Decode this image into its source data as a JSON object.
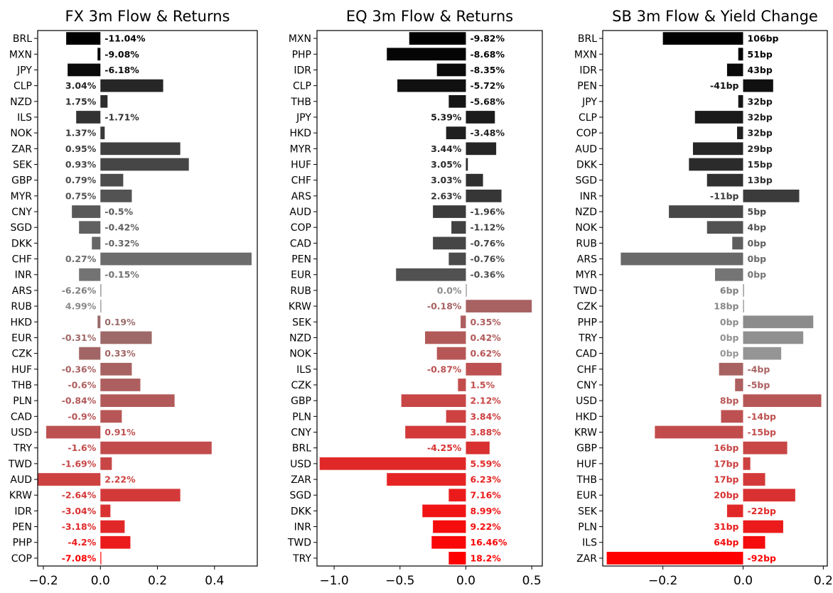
{
  "chart_data": [
    {
      "type": "bar",
      "orientation": "horizontal",
      "title": "FX 3m Flow & Returns",
      "xlim": [
        -0.22,
        0.55
      ],
      "xticks": [
        -0.2,
        0.0,
        0.2,
        0.4
      ],
      "xtick_labels": [
        "−0.2",
        "0.0",
        "0.2",
        "0.4"
      ],
      "grid": false,
      "categories": [
        "BRL",
        "MXN",
        "JPY",
        "CLP",
        "NZD",
        "ILS",
        "NOK",
        "ZAR",
        "SEK",
        "GBP",
        "MYR",
        "CNY",
        "SGD",
        "DKK",
        "CHF",
        "INR",
        "ARS",
        "RUB",
        "HKD",
        "EUR",
        "CZK",
        "HUF",
        "THB",
        "PLN",
        "CAD",
        "USD",
        "TRY",
        "TWD",
        "AUD",
        "KRW",
        "IDR",
        "PEN",
        "PHP",
        "COP"
      ],
      "values": [
        -0.12,
        -0.01,
        -0.115,
        0.22,
        0.025,
        -0.085,
        0.015,
        0.28,
        0.31,
        0.08,
        0.11,
        -0.1,
        -0.075,
        -0.03,
        0.53,
        -0.075,
        0.002,
        0.002,
        -0.01,
        0.18,
        -0.075,
        0.11,
        0.14,
        0.26,
        0.075,
        -0.19,
        0.39,
        0.04,
        -0.22,
        0.28,
        0.035,
        0.085,
        0.105,
        0.003
      ],
      "labels": [
        "-11.04%",
        "-9.08%",
        "-6.18%",
        "3.04%",
        "1.75%",
        "-1.71%",
        "1.37%",
        "0.95%",
        "0.93%",
        "0.79%",
        "0.75%",
        "-0.5%",
        "-0.42%",
        "-0.32%",
        "0.27%",
        "-0.15%",
        "-6.26%",
        "4.99%",
        "0.19%",
        "-0.31%",
        "0.33%",
        "-0.36%",
        "-0.6%",
        "-0.84%",
        "-0.9%",
        "0.91%",
        "-1.6%",
        "-1.69%",
        "2.22%",
        "-2.64%",
        "-3.04%",
        "-3.18%",
        "-4.2%",
        "-7.08%"
      ],
      "colors": [
        "#000000",
        "#050505",
        "#0a0a0a",
        "#262626",
        "#2d2d2d",
        "#333333",
        "#393939",
        "#404040",
        "#464646",
        "#4c4c4c",
        "#535353",
        "#595959",
        "#606060",
        "#666666",
        "#6c6c6c",
        "#737373",
        "#808080",
        "#8a8a8a",
        "#9a6b6b",
        "#9e6969",
        "#a26565",
        "#a86262",
        "#ad5e5e",
        "#b25a5a",
        "#b75656",
        "#bd5151",
        "#c24c4c",
        "#c84646",
        "#cd4141",
        "#d33939",
        "#d93131",
        "#e12828",
        "#eb1b1b",
        "#ff0000"
      ]
    },
    {
      "type": "bar",
      "orientation": "horizontal",
      "title": "EQ 3m Flow & Returns",
      "xlim": [
        -1.13,
        0.58
      ],
      "xticks": [
        -1.0,
        -0.5,
        0.0,
        0.5
      ],
      "xtick_labels": [
        "−1.0",
        "−0.5",
        "0.0",
        "0.5"
      ],
      "grid": false,
      "categories": [
        "MXN",
        "PHP",
        "IDR",
        "CLP",
        "THB",
        "JPY",
        "HKD",
        "MYR",
        "HUF",
        "CHF",
        "ARS",
        "AUD",
        "COP",
        "CAD",
        "PEN",
        "EUR",
        "RUB",
        "KRW",
        "SEK",
        "NZD",
        "NOK",
        "ILS",
        "CZK",
        "GBP",
        "PLN",
        "CNY",
        "BRL",
        "USD",
        "ZAR",
        "SGD",
        "DKK",
        "INR",
        "TWD",
        "TRY"
      ],
      "values": [
        -0.43,
        -0.6,
        -0.22,
        -0.52,
        -0.13,
        0.22,
        -0.15,
        0.23,
        0.015,
        0.13,
        0.27,
        -0.25,
        -0.11,
        -0.25,
        -0.13,
        -0.53,
        0.003,
        0.5,
        -0.04,
        -0.31,
        -0.22,
        0.27,
        -0.06,
        -0.49,
        -0.15,
        -0.46,
        0.18,
        -1.11,
        -0.6,
        -0.13,
        -0.33,
        -0.25,
        -0.26,
        -0.13
      ],
      "labels": [
        "-9.82%",
        "-8.68%",
        "-8.35%",
        "-5.72%",
        "-5.68%",
        "5.39%",
        "-3.48%",
        "3.44%",
        "3.05%",
        "3.03%",
        "2.63%",
        "-1.96%",
        "-1.12%",
        "-0.76%",
        "-0.76%",
        "-0.36%",
        "0.0%",
        "-0.18%",
        "0.35%",
        "0.42%",
        "0.62%",
        "-0.87%",
        "1.5%",
        "2.12%",
        "3.84%",
        "3.88%",
        "-4.25%",
        "5.59%",
        "6.23%",
        "7.16%",
        "8.99%",
        "9.22%",
        "16.46%",
        "18.2%"
      ],
      "colors": [
        "#000000",
        "#050505",
        "#0a0a0a",
        "#101010",
        "#151515",
        "#1b1b1b",
        "#202020",
        "#262626",
        "#2b2b2b",
        "#303030",
        "#363636",
        "#3b3b3b",
        "#414141",
        "#464646",
        "#4b4b4b",
        "#515151",
        "#8c8c8c",
        "#a86262",
        "#ad5e5e",
        "#b25a5a",
        "#b75656",
        "#bd5151",
        "#c24c4c",
        "#c84646",
        "#cd4141",
        "#d33939",
        "#d93131",
        "#e12828",
        "#e62323",
        "#eb1b1b",
        "#f01414",
        "#f50c0c",
        "#fa0707",
        "#ff0000"
      ]
    },
    {
      "type": "bar",
      "orientation": "horizontal",
      "title": "SB 3m Flow & Yield Change",
      "xlim": [
        -0.35,
        0.21
      ],
      "xticks": [
        -0.2,
        0.0,
        0.2
      ],
      "xtick_labels": [
        "−0.2",
        "0.0",
        "0.2"
      ],
      "grid": false,
      "categories": [
        "BRL",
        "MXN",
        "IDR",
        "PEN",
        "JPY",
        "CLP",
        "COP",
        "AUD",
        "DKK",
        "SGD",
        "INR",
        "NZD",
        "NOK",
        "RUB",
        "ARS",
        "MYR",
        "TWD",
        "CZK",
        "PHP",
        "TRY",
        "CAD",
        "CHF",
        "CNY",
        "USD",
        "HKD",
        "KRW",
        "GBP",
        "HUF",
        "THB",
        "EUR",
        "SEK",
        "PLN",
        "ILS",
        "ZAR"
      ],
      "values": [
        -0.2,
        -0.012,
        -0.04,
        0.075,
        -0.012,
        -0.12,
        -0.015,
        -0.125,
        -0.135,
        -0.09,
        0.14,
        -0.185,
        -0.09,
        -0.027,
        -0.305,
        -0.07,
        0.002,
        0.002,
        0.175,
        0.15,
        0.095,
        -0.06,
        -0.02,
        0.195,
        -0.055,
        -0.22,
        0.11,
        0.018,
        0.055,
        0.13,
        -0.04,
        0.1,
        0.055,
        -0.34
      ],
      "labels": [
        "106bp",
        "51bp",
        "43bp",
        "-41bp",
        "32bp",
        "32bp",
        "32bp",
        "29bp",
        "15bp",
        "13bp",
        "-11bp",
        "5bp",
        "4bp",
        "0bp",
        "0bp",
        "0bp",
        "6bp",
        "18bp",
        "0bp",
        "0bp",
        "0bp",
        "-4bp",
        "-5bp",
        "8bp",
        "-14bp",
        "-15bp",
        "16bp",
        "17bp",
        "17bp",
        "20bp",
        "-22bp",
        "31bp",
        "64bp",
        "-92bp"
      ],
      "colors": [
        "#000000",
        "#050505",
        "#0a0a0a",
        "#101010",
        "#151515",
        "#1b1b1b",
        "#202020",
        "#262626",
        "#2b2b2b",
        "#303030",
        "#3b3b3b",
        "#474747",
        "#525252",
        "#5e5e5e",
        "#696969",
        "#757575",
        "#808080",
        "#888888",
        "#8c8c8c",
        "#909090",
        "#959595",
        "#a86262",
        "#ad5e5e",
        "#b75656",
        "#bd5151",
        "#c24c4c",
        "#c84646",
        "#cd4141",
        "#d33939",
        "#d93131",
        "#e12828",
        "#eb1b1b",
        "#f50c0c",
        "#ff0000"
      ]
    }
  ]
}
